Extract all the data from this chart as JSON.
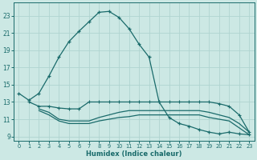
{
  "xlabel": "Humidex (Indice chaleur)",
  "xlim": [
    -0.5,
    23.5
  ],
  "ylim": [
    8.5,
    24.5
  ],
  "xticks": [
    0,
    1,
    2,
    3,
    4,
    5,
    6,
    7,
    8,
    9,
    10,
    11,
    12,
    13,
    14,
    15,
    16,
    17,
    18,
    19,
    20,
    21,
    22,
    23
  ],
  "yticks": [
    9,
    11,
    13,
    15,
    17,
    19,
    21,
    23
  ],
  "bg_color": "#cce8e4",
  "grid_color": "#b0d4d0",
  "line_color": "#1a6b6b",
  "line1": {
    "x": [
      0,
      1,
      2,
      3,
      4,
      5,
      6,
      7,
      8,
      9,
      10,
      11,
      12,
      13,
      14,
      15,
      16,
      17,
      18,
      19,
      20,
      21,
      22,
      23
    ],
    "y": [
      14.0,
      13.2,
      14.0,
      16.0,
      18.2,
      20.0,
      21.2,
      22.3,
      23.4,
      23.5,
      22.8,
      21.5,
      19.7,
      18.2,
      13.0,
      11.2,
      10.5,
      10.2,
      9.8,
      9.5,
      9.3,
      9.5,
      9.3,
      9.2
    ]
  },
  "line2": {
    "x": [
      1,
      2,
      3,
      4,
      5,
      6,
      7,
      8,
      9,
      10,
      11,
      12,
      13,
      14,
      15,
      16,
      17,
      18,
      19,
      20,
      21,
      22,
      23
    ],
    "y": [
      13.0,
      12.5,
      12.5,
      12.3,
      12.2,
      12.2,
      13.0,
      13.0,
      13.0,
      13.0,
      13.0,
      13.0,
      13.0,
      13.0,
      13.0,
      13.0,
      13.0,
      13.0,
      13.0,
      12.8,
      12.5,
      11.5,
      9.5
    ]
  },
  "line3": {
    "x": [
      2,
      3,
      4,
      5,
      6,
      7,
      8,
      9,
      10,
      11,
      12,
      13,
      14,
      15,
      16,
      17,
      18,
      19,
      20,
      21,
      22,
      23
    ],
    "y": [
      12.2,
      11.8,
      11.0,
      10.8,
      10.8,
      10.8,
      11.2,
      11.5,
      11.8,
      12.0,
      12.0,
      12.0,
      12.0,
      12.0,
      12.0,
      12.0,
      12.0,
      11.8,
      11.5,
      11.2,
      10.5,
      9.5
    ]
  },
  "line4": {
    "x": [
      2,
      3,
      4,
      5,
      6,
      7,
      8,
      9,
      10,
      11,
      12,
      13,
      14,
      15,
      16,
      17,
      18,
      19,
      20,
      21,
      22,
      23
    ],
    "y": [
      12.0,
      11.5,
      10.8,
      10.5,
      10.5,
      10.5,
      10.8,
      11.0,
      11.2,
      11.3,
      11.5,
      11.5,
      11.5,
      11.5,
      11.5,
      11.5,
      11.5,
      11.2,
      11.0,
      10.8,
      10.0,
      9.2
    ]
  }
}
